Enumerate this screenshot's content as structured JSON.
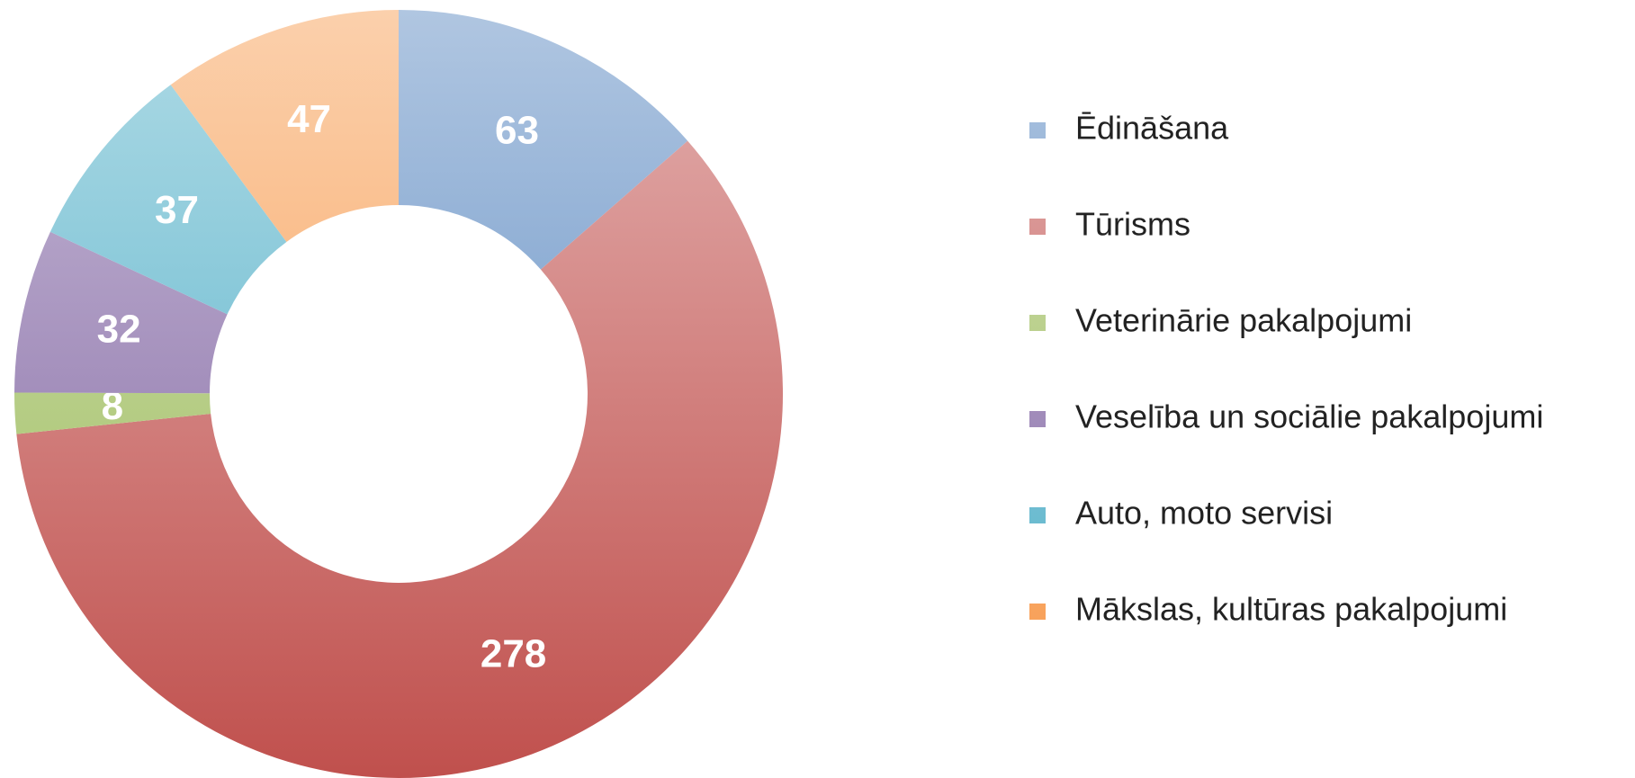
{
  "chart_data": {
    "type": "donut",
    "categories": [
      "Ēdināšana",
      "Tūrisms",
      "Veterinārie pakalpojumi",
      "Veselība un sociālie pakalpojumi",
      "Auto, moto servisi",
      "Mākslas, kultūras pakalpojumi"
    ],
    "values": [
      63,
      278,
      8,
      32,
      37,
      47
    ],
    "colors": [
      "#4f81bd",
      "#c0504d",
      "#9bbb59",
      "#8064a2",
      "#4bacc6",
      "#f79646"
    ],
    "legend": "right"
  }
}
